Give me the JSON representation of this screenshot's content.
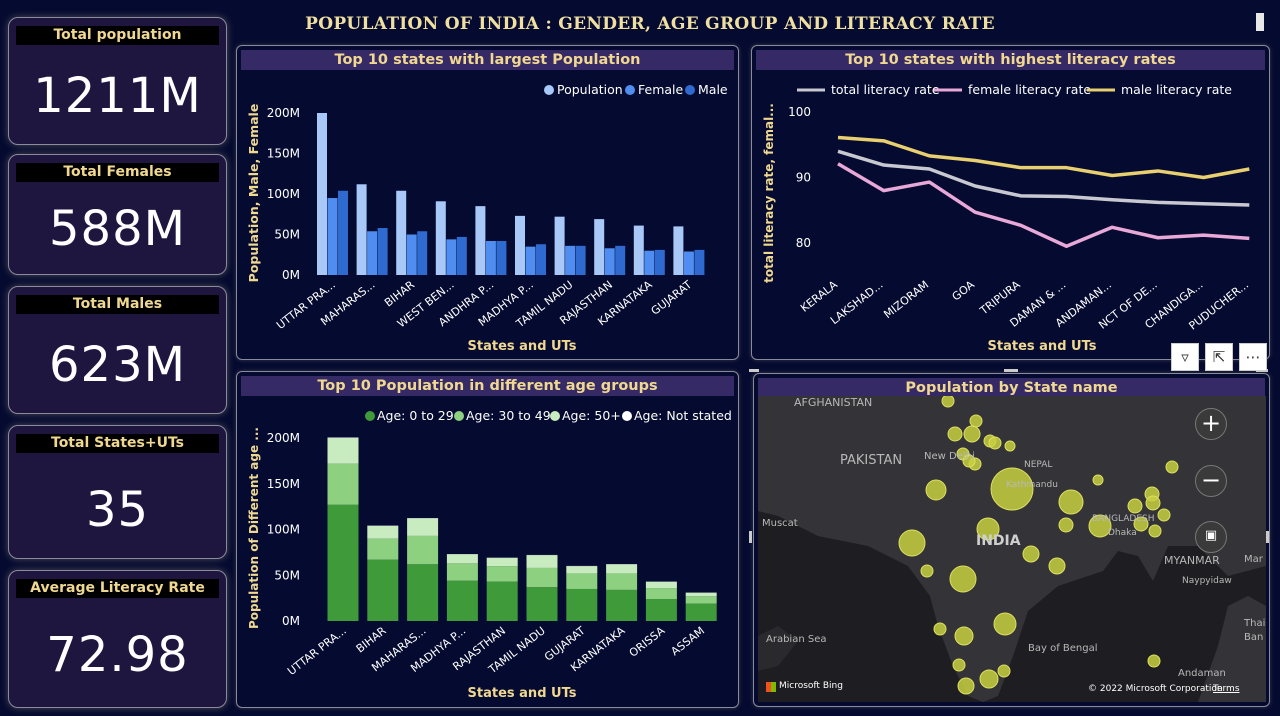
{
  "header": {
    "title": "POPULATION OF INDIA : GENDER, AGE GROUP AND LITERACY RATE"
  },
  "kpis": [
    {
      "label": "Total population",
      "value": "1211M"
    },
    {
      "label": "Total Females",
      "value": "588M"
    },
    {
      "label": "Total Males",
      "value": "623M"
    },
    {
      "label": "Total States+UTs",
      "value": "35"
    },
    {
      "label": "Average Literacy Rate",
      "value": "72.98"
    }
  ],
  "colors": {
    "population": "#a8c8f8",
    "female": "#4f8ef0",
    "male": "#2e6ad0",
    "total_lit": "#c8c8d0",
    "female_lit": "#e8a8d8",
    "male_lit": "#e8d070",
    "age0": "#3f9a3a",
    "age30": "#8cd080",
    "age50": "#c8ecc0",
    "agens": "#ffffff",
    "bubble": "#c8d040",
    "axis_title": "#f0d890"
  },
  "chart_data": [
    {
      "type": "bar",
      "title": "Top 10 states with largest Population",
      "xlabel": "States and UTs",
      "ylabel": "Population, Male, Female",
      "ylim": [
        0,
        200
      ],
      "yticks": [
        "0M",
        "50M",
        "100M",
        "150M",
        "200M"
      ],
      "legend_position": "top-right",
      "categories": [
        "UTTAR PRA...",
        "MAHARAS...",
        "BIHAR",
        "WEST BEN...",
        "ANDHRA P...",
        "MADHYA P...",
        "TAMIL NADU",
        "RAJASTHAN",
        "KARNATAKA",
        "GUJARAT"
      ],
      "series": [
        {
          "name": "Population",
          "values": [
            200,
            112,
            104,
            91,
            85,
            73,
            72,
            69,
            61,
            60
          ]
        },
        {
          "name": "Female",
          "values": [
            95,
            54,
            50,
            44,
            42,
            35,
            36,
            33,
            30,
            29
          ]
        },
        {
          "name": "Male",
          "values": [
            104,
            58,
            54,
            47,
            42,
            38,
            36,
            36,
            31,
            31
          ]
        }
      ]
    },
    {
      "type": "line",
      "title": "Top 10 states with highest literacy rates",
      "xlabel": "States and UTs",
      "ylabel": "total literacy rate, femal...",
      "ylim": [
        75,
        100
      ],
      "yticks": [
        "80",
        "90",
        "100"
      ],
      "legend_position": "top-left",
      "categories": [
        "KERALA",
        "LAKSHAD...",
        "MIZORAM",
        "GOA",
        "TRIPURA",
        "DAMAN & ...",
        "ANDAMAN...",
        "NCT OF DE...",
        "CHANDIGA...",
        "PUDUCHER..."
      ],
      "series": [
        {
          "name": "total literacy rate",
          "values": [
            94.0,
            91.9,
            91.3,
            88.7,
            87.2,
            87.1,
            86.6,
            86.2,
            86.0,
            85.8
          ]
        },
        {
          "name": "female literacy rate",
          "values": [
            92.1,
            88.0,
            89.3,
            84.7,
            82.7,
            79.5,
            82.4,
            80.8,
            81.2,
            80.7
          ]
        },
        {
          "name": "male literacy rate",
          "values": [
            96.1,
            95.6,
            93.3,
            92.6,
            91.5,
            91.5,
            90.3,
            91.0,
            90.0,
            91.3
          ]
        }
      ]
    },
    {
      "type": "bar",
      "stacked": true,
      "title": "Top 10 Population in different age groups",
      "xlabel": "States and UTs",
      "ylabel": "Population of Different age ...",
      "ylim": [
        0,
        200
      ],
      "yticks": [
        "0M",
        "50M",
        "100M",
        "150M",
        "200M"
      ],
      "legend_position": "top-right",
      "categories": [
        "UTTAR PRA...",
        "BIHAR",
        "MAHARAS...",
        "MADHYA P...",
        "RAJASTHAN",
        "TAMIL NADU",
        "GUJARAT",
        "KARNATAKA",
        "ORISSA",
        "ASSAM"
      ],
      "series": [
        {
          "name": "Age: 0 to 29",
          "values": [
            127,
            67,
            62,
            44,
            43,
            37,
            35,
            34,
            24,
            19
          ]
        },
        {
          "name": "Age: 30 to 49",
          "values": [
            45,
            23,
            31,
            19,
            17,
            21,
            17,
            18,
            12,
            8
          ]
        },
        {
          "name": "Age: 50+",
          "values": [
            28,
            14,
            19,
            10,
            9,
            14,
            8,
            10,
            7,
            4
          ]
        },
        {
          "name": "Age: Not stated",
          "values": [
            0.5,
            0.3,
            0.4,
            0.2,
            0.2,
            0.2,
            0.2,
            0.2,
            0.1,
            0.1
          ]
        }
      ]
    }
  ],
  "map": {
    "title": "Population by State name",
    "labels": [
      "AFGHANISTAN",
      "PAKISTAN",
      "New Delhi",
      "NEPAL",
      "Kathmandu",
      "BANGLADESH",
      "Dhaka",
      "Muscat",
      "INDIA",
      "MYANMAR",
      "Naypyidaw",
      "Arabian Sea",
      "Bay of Bengal",
      "Andaman",
      "Mar",
      "Thai",
      "Ban"
    ],
    "attribution": "Microsoft Bing",
    "copyright": "© 2022 Microsoft Corporation",
    "terms": "Terms",
    "zoom_in": "+",
    "zoom_out": "−"
  },
  "bubbles": [
    [
      190,
      5,
      6
    ],
    [
      218,
      25,
      6
    ],
    [
      232,
      45,
      6
    ],
    [
      197,
      38,
      7
    ],
    [
      214,
      38,
      8
    ],
    [
      205,
      58,
      6
    ],
    [
      217,
      68,
      6
    ],
    [
      237,
      47,
      6
    ],
    [
      211,
      65,
      6
    ],
    [
      252,
      50,
      5
    ],
    [
      254,
      93,
      21
    ],
    [
      313,
      106,
      12
    ],
    [
      178,
      94,
      10
    ],
    [
      230,
      133,
      11
    ],
    [
      340,
      84,
      5
    ],
    [
      342,
      130,
      11
    ],
    [
      308,
      129,
      7
    ],
    [
      394,
      98,
      7
    ],
    [
      377,
      110,
      7
    ],
    [
      414,
      71,
      6
    ],
    [
      395,
      107,
      7
    ],
    [
      406,
      119,
      6
    ],
    [
      383,
      128,
      7
    ],
    [
      397,
      135,
      6
    ],
    [
      154,
      147,
      13
    ],
    [
      273,
      158,
      8
    ],
    [
      299,
      170,
      8
    ],
    [
      169,
      175,
      6
    ],
    [
      205,
      183,
      13
    ],
    [
      182,
      233,
      6
    ],
    [
      206,
      240,
      9
    ],
    [
      247,
      228,
      11
    ],
    [
      246,
      275,
      6
    ],
    [
      201,
      269,
      6
    ],
    [
      231,
      283,
      9
    ],
    [
      208,
      290,
      8
    ],
    [
      396,
      265,
      6
    ]
  ]
}
